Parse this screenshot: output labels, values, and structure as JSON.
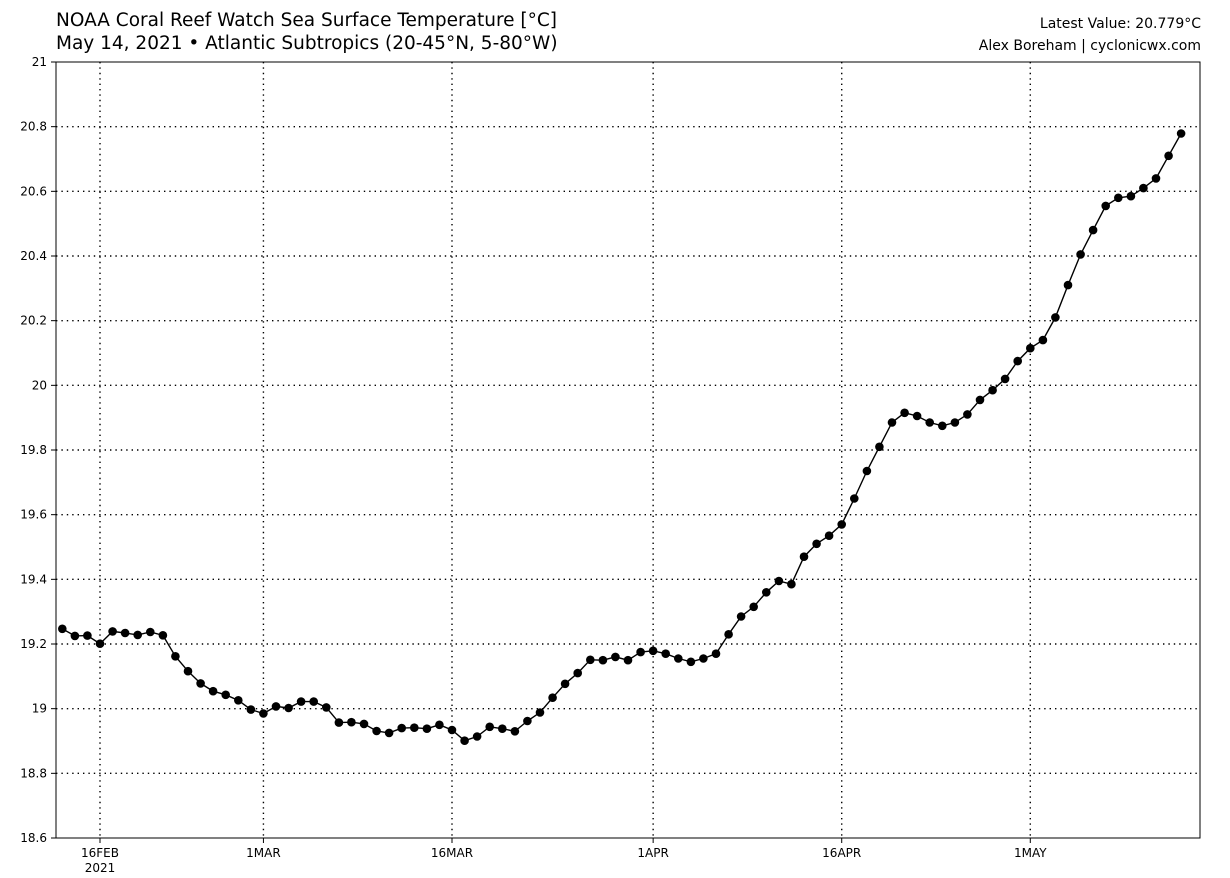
{
  "header": {
    "title_line1": "NOAA Coral Reef Watch Sea Surface Temperature [°C]",
    "title_line2": "May 14, 2021 • Atlantic Subtropics (20-45°N, 5-80°W)",
    "latest_value": "Latest Value: 20.779°C",
    "credit": "Alex Boreham | cyclonicwx.com"
  },
  "chart_data": {
    "type": "line",
    "title": "NOAA Coral Reef Watch Sea Surface Temperature [°C]",
    "subtitle": "May 14, 2021 • Atlantic Subtropics (20-45°N, 5-80°W)",
    "xlabel": "",
    "ylabel": "",
    "x_start_date": "2021-02-13",
    "x_end_date": "2021-05-14",
    "x_tick_labels": [
      "16FEB",
      "1MAR",
      "16MAR",
      "1APR",
      "16APR",
      "1MAY"
    ],
    "x_year_label": "2021",
    "y_ticks": [
      18.6,
      18.8,
      19,
      19.2,
      19.4,
      19.6,
      19.8,
      20,
      20.2,
      20.4,
      20.6,
      20.8,
      21
    ],
    "ylim": [
      18.6,
      21
    ],
    "grid": true,
    "grid_style": "dotted",
    "marker": "circle",
    "series_color": "#000000",
    "series": [
      {
        "values": [
          19.247,
          19.225,
          19.226,
          19.201,
          19.239,
          19.234,
          19.228,
          19.237,
          19.227,
          19.162,
          19.116,
          19.078,
          19.054,
          19.043,
          19.026,
          18.997,
          18.985,
          19.007,
          19.002,
          19.022,
          19.022,
          19.004,
          18.957,
          18.958,
          18.953,
          18.931,
          18.925,
          18.94,
          18.941,
          18.938,
          18.95,
          18.934,
          18.901,
          18.914,
          18.944,
          18.938,
          18.93,
          18.962,
          18.988,
          19.034,
          19.077,
          19.11,
          19.151,
          19.15,
          19.16,
          19.15,
          19.175,
          19.179,
          19.17,
          19.155,
          19.145,
          19.155,
          19.17,
          19.23,
          19.285,
          19.315,
          19.36,
          19.395,
          19.385,
          19.47,
          19.51,
          19.535,
          19.57,
          19.65,
          19.735,
          19.81,
          19.885,
          19.915,
          19.905,
          19.885,
          19.875,
          19.885,
          19.91,
          19.955,
          19.985,
          20.02,
          20.075,
          20.115,
          20.14,
          20.21,
          20.31,
          20.405,
          20.48,
          20.555,
          20.58,
          20.585,
          20.61,
          20.64,
          20.71,
          20.779
        ]
      }
    ]
  }
}
